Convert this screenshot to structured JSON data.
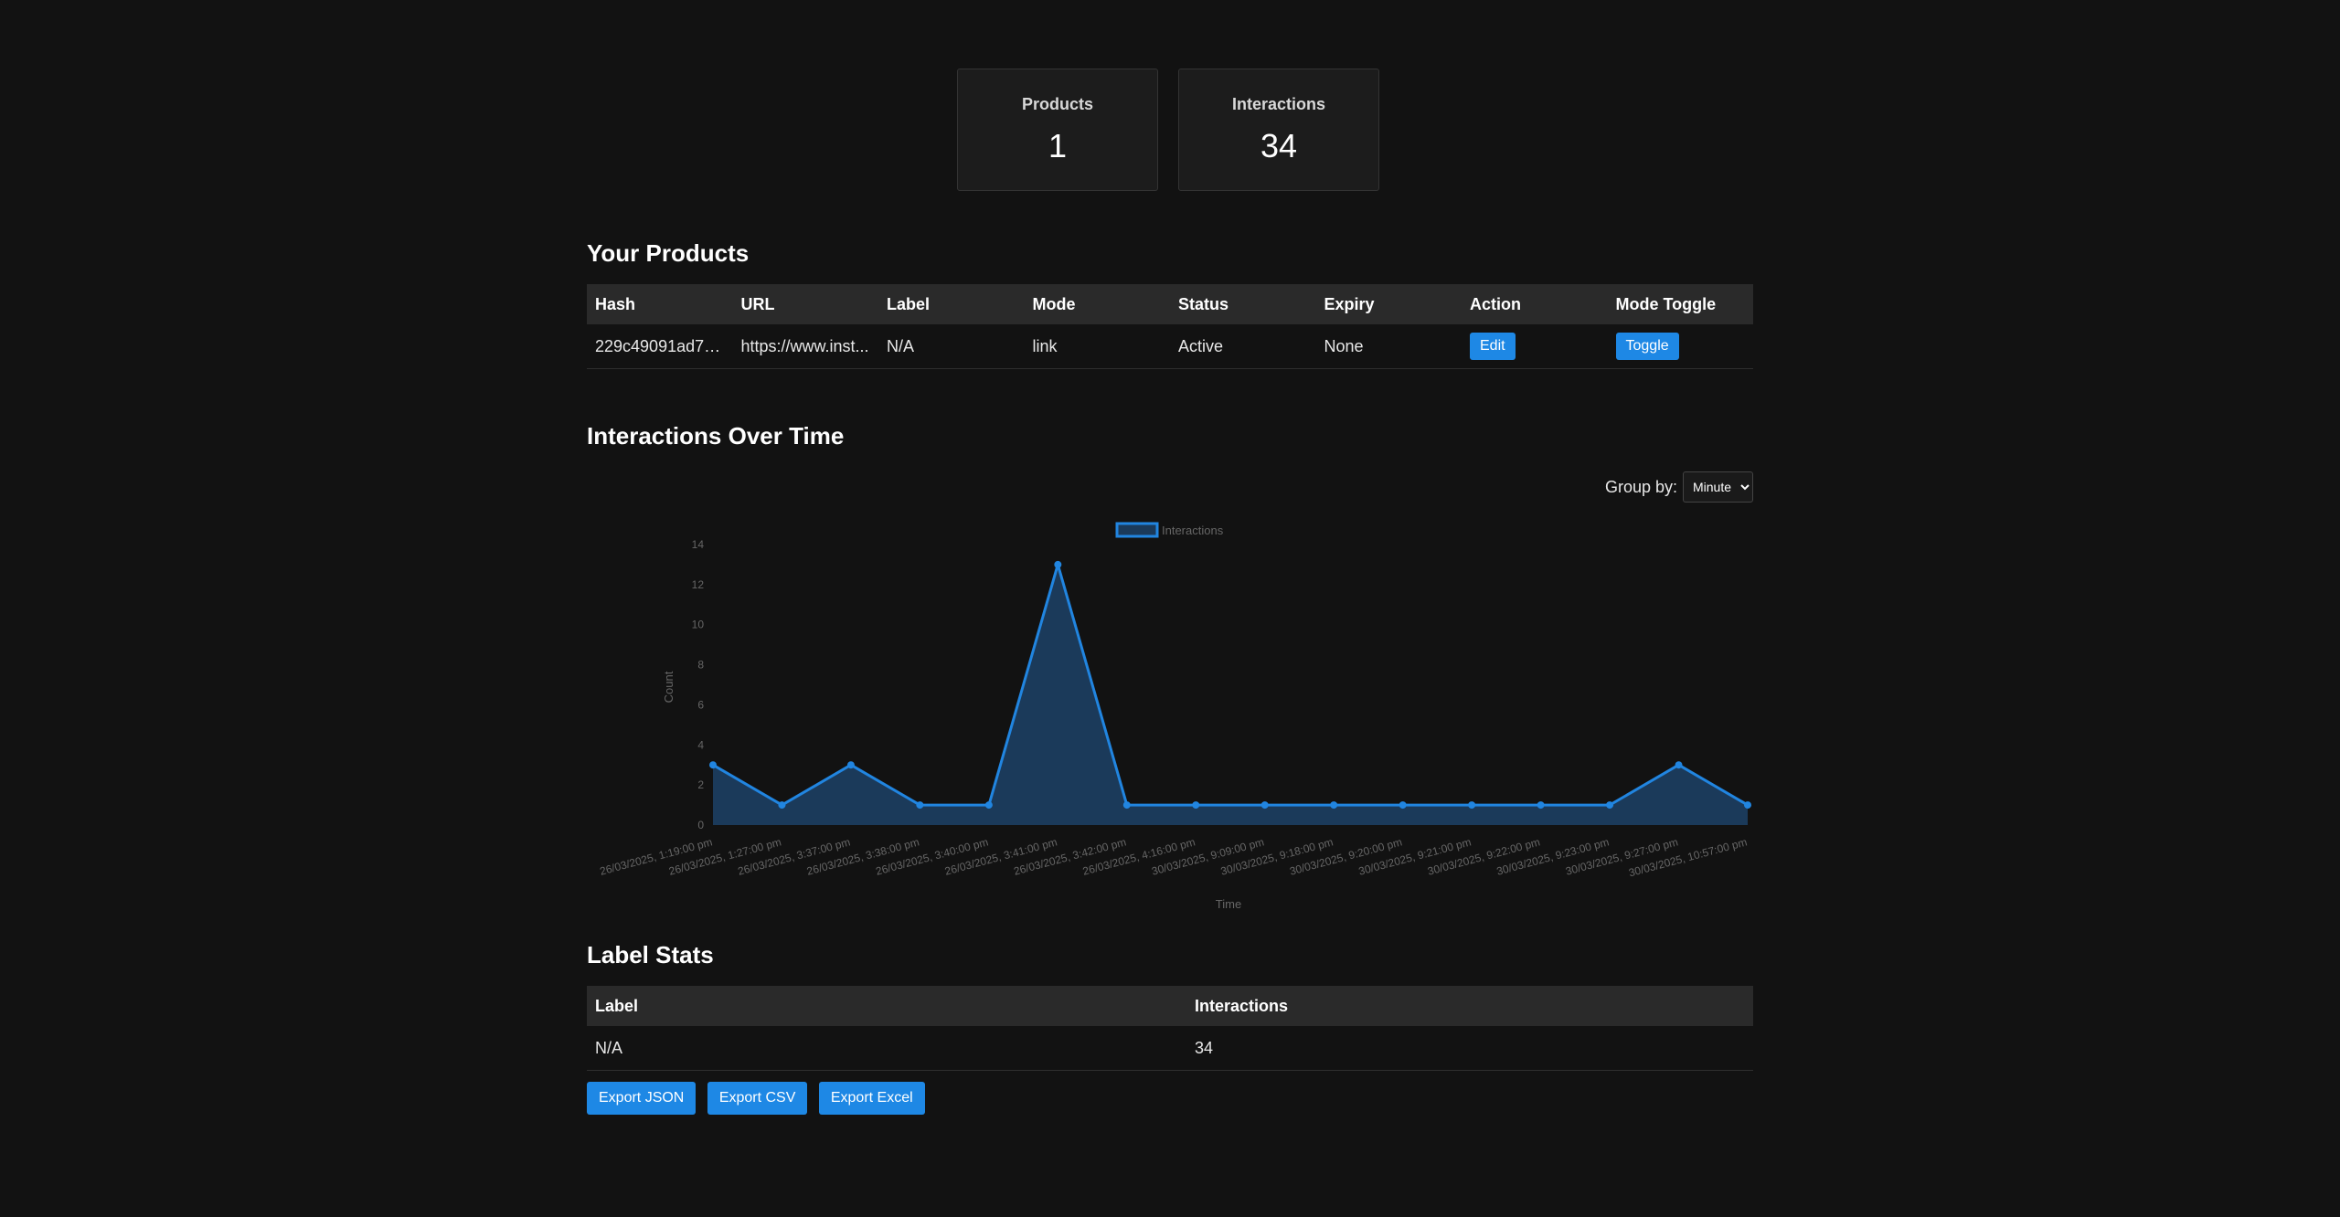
{
  "stats": [
    {
      "title": "Products",
      "value": "1"
    },
    {
      "title": "Interactions",
      "value": "34"
    }
  ],
  "products": {
    "heading": "Your Products",
    "columns": [
      "Hash",
      "URL",
      "Label",
      "Mode",
      "Status",
      "Expiry",
      "Action",
      "Mode Toggle"
    ],
    "rows": [
      {
        "hash": "229c49091ad78...",
        "url": "https://www.inst...",
        "label": "N/A",
        "mode": "link",
        "status": "Active",
        "expiry": "None",
        "action": "Edit",
        "toggle": "Toggle"
      }
    ]
  },
  "interactions": {
    "heading": "Interactions Over Time",
    "group_by_label": "Group by:",
    "group_by_value": "Minute"
  },
  "chart_data": {
    "type": "area",
    "x": [
      "26/03/2025, 1:19:00 pm",
      "26/03/2025, 1:27:00 pm",
      "26/03/2025, 3:37:00 pm",
      "26/03/2025, 3:38:00 pm",
      "26/03/2025, 3:40:00 pm",
      "26/03/2025, 3:41:00 pm",
      "26/03/2025, 3:42:00 pm",
      "26/03/2025, 4:16:00 pm",
      "30/03/2025, 9:09:00 pm",
      "30/03/2025, 9:18:00 pm",
      "30/03/2025, 9:20:00 pm",
      "30/03/2025, 9:21:00 pm",
      "30/03/2025, 9:22:00 pm",
      "30/03/2025, 9:23:00 pm",
      "30/03/2025, 9:27:00 pm",
      "30/03/2025, 10:57:00 pm"
    ],
    "series": [
      {
        "name": "Interactions",
        "values": [
          3,
          1,
          3,
          1,
          1,
          13,
          1,
          1,
          1,
          1,
          1,
          1,
          1,
          1,
          3,
          1
        ]
      }
    ],
    "xlabel": "Time",
    "ylabel": "Count",
    "ylim": [
      0,
      14
    ],
    "yticks": [
      0,
      2,
      4,
      6,
      8,
      10,
      12,
      14
    ],
    "legend": "top-center",
    "grid": false,
    "line_color": "#2185e0",
    "fill_color": "#1b3a5a"
  },
  "label_stats": {
    "heading": "Label Stats",
    "columns": [
      "Label",
      "Interactions"
    ],
    "rows": [
      {
        "label": "N/A",
        "interactions": "34"
      }
    ]
  },
  "exports": [
    "Export JSON",
    "Export CSV",
    "Export Excel"
  ],
  "colors": {
    "accent": "#1e88e5",
    "background": "#121212",
    "card": "#1c1c1c"
  }
}
